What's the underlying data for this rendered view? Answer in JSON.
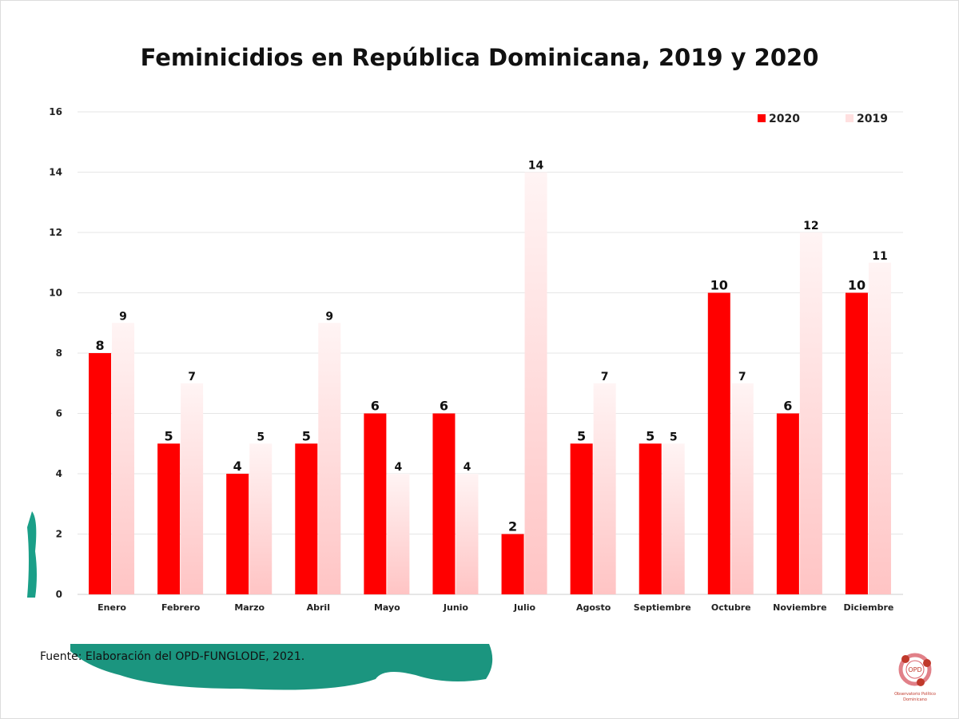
{
  "chart_data": {
    "type": "bar",
    "title": "Feminicidios en República Dominicana, 2019 y 2020",
    "categories": [
      "Enero",
      "Febrero",
      "Marzo",
      "Abril",
      "Mayo",
      "Junio",
      "Julio",
      "Agosto",
      "Septiembre",
      "Octubre",
      "Noviembre",
      "Diciembre"
    ],
    "series": [
      {
        "name": "2020",
        "color": "#ff0000",
        "values": [
          8,
          5,
          4,
          5,
          6,
          6,
          2,
          5,
          5,
          10,
          6,
          10
        ]
      },
      {
        "name": "2019",
        "color": "#ffd6d6",
        "values": [
          9,
          7,
          5,
          9,
          4,
          4,
          14,
          7,
          5,
          7,
          12,
          11
        ]
      }
    ],
    "ylim": [
      0,
      16
    ],
    "yticks": [
      0,
      2,
      4,
      6,
      8,
      10,
      12,
      14,
      16
    ],
    "grid": true,
    "legend": "top-right",
    "data_labels": true
  },
  "source": "Fuente: Elaboración del OPD-FUNGLODE, 2021.",
  "logo": {
    "text": "OPD",
    "caption": "Observatorio Político Dominicano",
    "color": "#c0392b"
  }
}
